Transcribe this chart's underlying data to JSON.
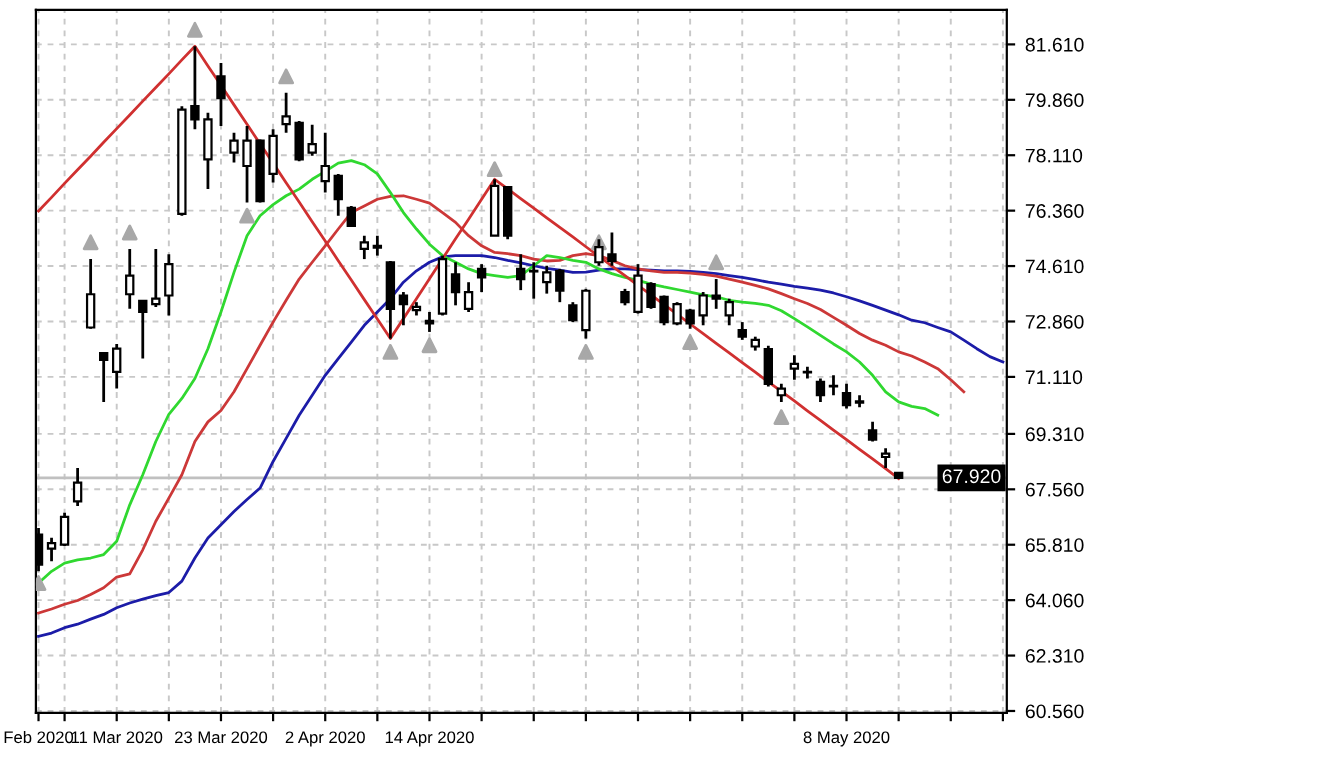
{
  "chart_data": {
    "type": "candlestick",
    "categories": [
      "Feb 2020",
      null,
      null,
      null,
      null,
      null,
      "11 Mar 2020",
      null,
      null,
      null,
      null,
      null,
      null,
      null,
      "23 Mar 2020",
      null,
      null,
      null,
      null,
      null,
      null,
      null,
      "2 Apr 2020",
      null,
      null,
      null,
      null,
      null,
      null,
      null,
      "14 Apr 2020",
      null,
      null,
      null,
      null,
      null,
      null,
      null,
      null,
      null,
      null,
      null,
      null,
      null,
      null,
      null,
      null,
      null,
      null,
      null,
      null,
      null,
      null,
      null,
      null,
      null,
      null,
      null,
      null,
      null,
      null,
      null,
      "8 May 2020",
      null,
      null,
      null,
      null,
      null,
      null,
      null,
      null,
      null,
      null,
      null,
      null
    ],
    "ohlc": [
      [
        66.13,
        66.34,
        64.97,
        65.18
      ],
      [
        65.69,
        66.03,
        65.29,
        65.86
      ],
      [
        65.81,
        66.82,
        65.77,
        66.69
      ],
      [
        67.18,
        68.23,
        67.03,
        67.77
      ],
      [
        72.67,
        74.83,
        72.63,
        73.72
      ],
      [
        71.86,
        71.86,
        70.32,
        71.65
      ],
      [
        71.27,
        72.15,
        70.74,
        72.0
      ],
      [
        73.72,
        75.15,
        73.26,
        74.31
      ],
      [
        73.51,
        73.51,
        71.69,
        73.16
      ],
      [
        73.41,
        75.15,
        73.32,
        73.58
      ],
      [
        73.68,
        74.98,
        73.05,
        74.67
      ],
      [
        76.26,
        79.66,
        76.2,
        79.55
      ],
      [
        79.66,
        81.55,
        78.93,
        79.24
      ],
      [
        77.98,
        79.45,
        77.04,
        79.24
      ],
      [
        80.6,
        81.02,
        79.03,
        79.91
      ],
      [
        78.19,
        78.82,
        77.88,
        78.57
      ],
      [
        77.77,
        79.03,
        76.62,
        78.57
      ],
      [
        78.57,
        78.61,
        76.62,
        76.66
      ],
      [
        77.52,
        78.93,
        77.25,
        78.72
      ],
      [
        79.09,
        80.08,
        78.82,
        79.34
      ],
      [
        79.13,
        79.19,
        77.92,
        77.98
      ],
      [
        78.19,
        79.07,
        78.09,
        78.46
      ],
      [
        77.29,
        78.82,
        76.93,
        77.77
      ],
      [
        77.46,
        77.52,
        76.2,
        76.72
      ],
      [
        76.45,
        76.51,
        75.84,
        75.88
      ],
      [
        75.15,
        75.57,
        74.83,
        75.36
      ],
      [
        75.25,
        75.57,
        74.94,
        75.19
      ],
      [
        74.73,
        74.77,
        72.32,
        73.26
      ],
      [
        73.68,
        73.79,
        72.74,
        73.41
      ],
      [
        73.22,
        73.47,
        73.05,
        73.32
      ],
      [
        72.88,
        73.16,
        72.53,
        72.8
      ],
      [
        73.11,
        74.94,
        73.05,
        74.83
      ],
      [
        74.35,
        74.73,
        73.37,
        73.79
      ],
      [
        73.26,
        74.1,
        73.16,
        73.79
      ],
      [
        74.52,
        74.67,
        73.79,
        74.25
      ],
      [
        75.57,
        77.35,
        75.57,
        77.14
      ],
      [
        77.1,
        77.14,
        75.46,
        75.57
      ],
      [
        74.52,
        74.98,
        73.85,
        74.2
      ],
      [
        74.46,
        74.73,
        73.58,
        74.44
      ],
      [
        74.1,
        74.62,
        73.74,
        74.41
      ],
      [
        74.46,
        74.52,
        73.47,
        73.83
      ],
      [
        73.37,
        73.47,
        72.84,
        72.9
      ],
      [
        72.59,
        73.89,
        72.32,
        73.83
      ],
      [
        74.73,
        75.46,
        74.62,
        75.21
      ],
      [
        74.98,
        75.67,
        74.62,
        74.77
      ],
      [
        73.79,
        73.89,
        73.37,
        73.47
      ],
      [
        73.16,
        74.67,
        73.11,
        74.31
      ],
      [
        74.04,
        74.1,
        73.26,
        73.32
      ],
      [
        73.64,
        73.68,
        72.74,
        72.84
      ],
      [
        72.8,
        73.47,
        72.74,
        73.41
      ],
      [
        73.2,
        73.26,
        72.63,
        72.8
      ],
      [
        73.05,
        73.79,
        72.74,
        73.68
      ],
      [
        73.68,
        74.2,
        73.26,
        73.58
      ],
      [
        73.05,
        73.58,
        72.74,
        73.47
      ],
      [
        72.59,
        72.84,
        72.28,
        72.38
      ],
      [
        72.07,
        72.38,
        71.94,
        72.28
      ],
      [
        71.99,
        72.09,
        70.81,
        70.89
      ],
      [
        70.53,
        70.89,
        70.32,
        70.74
      ],
      [
        71.37,
        71.79,
        71.02,
        71.52
      ],
      [
        71.27,
        71.43,
        71.06,
        71.25
      ],
      [
        70.95,
        71.06,
        70.32,
        70.53
      ],
      [
        70.83,
        71.16,
        70.53,
        70.81
      ],
      [
        70.6,
        70.89,
        70.11,
        70.22
      ],
      [
        70.34,
        70.53,
        70.15,
        70.3
      ],
      [
        69.42,
        69.69,
        69.07,
        69.13
      ],
      [
        68.58,
        68.86,
        68.23,
        68.69
      ],
      [
        68.08,
        68.08,
        67.9,
        67.92
      ],
      null,
      null,
      null,
      null,
      null,
      null,
      null,
      null
    ],
    "series": [
      {
        "type": "line",
        "color": "#1c1ca8",
        "values": [
          62.92,
          63.02,
          63.19,
          63.3,
          63.46,
          63.61,
          63.82,
          63.97,
          64.09,
          64.2,
          64.3,
          64.66,
          65.39,
          66.02,
          66.44,
          66.86,
          67.24,
          67.6,
          68.44,
          69.17,
          69.9,
          70.53,
          71.16,
          71.69,
          72.21,
          72.74,
          73.16,
          73.58,
          74.1,
          74.46,
          74.73,
          74.9,
          74.94,
          74.94,
          74.94,
          74.88,
          74.79,
          74.71,
          74.62,
          74.54,
          74.48,
          74.41,
          74.42,
          74.48,
          74.52,
          74.52,
          74.5,
          74.48,
          74.46,
          74.46,
          74.44,
          74.41,
          74.37,
          74.31,
          74.25,
          74.18,
          74.1,
          74.04,
          73.97,
          73.91,
          73.85,
          73.76,
          73.64,
          73.51,
          73.37,
          73.22,
          73.07,
          72.9,
          72.82,
          72.67,
          72.53,
          72.27,
          72.0,
          71.75,
          71.58
        ]
      },
      {
        "type": "line",
        "color": "#cc3838",
        "values": [
          63.65,
          63.78,
          63.93,
          64.05,
          64.24,
          64.45,
          64.79,
          64.89,
          65.65,
          66.55,
          67.28,
          68.02,
          69.07,
          69.69,
          70.05,
          70.64,
          71.37,
          72.11,
          72.84,
          73.53,
          74.2,
          74.73,
          75.25,
          75.78,
          76.3,
          76.51,
          76.72,
          76.81,
          76.83,
          76.72,
          76.6,
          76.3,
          75.99,
          75.57,
          75.25,
          75.04,
          75.0,
          74.94,
          74.83,
          74.77,
          74.79,
          74.94,
          75.0,
          74.94,
          74.79,
          74.62,
          74.52,
          74.46,
          74.41,
          74.41,
          74.39,
          74.35,
          74.29,
          74.2,
          74.1,
          74.0,
          73.89,
          73.74,
          73.58,
          73.43,
          73.24,
          72.99,
          72.74,
          72.48,
          72.27,
          72.11,
          71.9,
          71.77,
          71.58,
          71.37,
          71.02,
          70.64,
          null,
          null,
          null
        ]
      },
      {
        "type": "line",
        "color": "#30d830",
        "values": [
          64.6,
          64.97,
          65.23,
          65.33,
          65.39,
          65.5,
          65.92,
          67.07,
          68.02,
          69.07,
          69.93,
          70.43,
          71.06,
          72.0,
          73.16,
          74.41,
          75.57,
          76.2,
          76.55,
          76.83,
          77.04,
          77.35,
          77.6,
          77.86,
          77.94,
          77.81,
          77.52,
          76.93,
          76.3,
          75.78,
          75.3,
          74.94,
          74.73,
          74.52,
          74.37,
          74.31,
          74.25,
          74.31,
          74.62,
          74.94,
          74.88,
          74.79,
          74.73,
          74.52,
          74.37,
          74.25,
          74.16,
          74.04,
          73.95,
          73.87,
          73.79,
          73.7,
          73.64,
          73.53,
          73.47,
          73.43,
          73.37,
          73.2,
          72.95,
          72.69,
          72.42,
          72.15,
          71.9,
          71.58,
          71.16,
          70.64,
          70.32,
          70.18,
          70.11,
          69.9,
          null,
          null,
          null,
          null,
          null
        ]
      },
      {
        "type": "line",
        "color": "#d03030",
        "values": [
          76.35,
          76.78,
          77.22,
          77.65,
          78.08,
          78.52,
          78.95,
          79.38,
          79.82,
          80.25,
          80.68,
          81.12,
          81.55,
          80.93,
          80.32,
          79.7,
          79.09,
          78.47,
          77.86,
          77.24,
          76.63,
          76.01,
          75.4,
          74.78,
          74.17,
          73.55,
          72.94,
          72.32,
          72.95,
          73.58,
          74.21,
          74.84,
          75.47,
          76.09,
          76.72,
          77.35,
          77.05,
          76.74,
          76.44,
          76.13,
          75.83,
          75.53,
          75.22,
          74.92,
          74.61,
          74.31,
          74.0,
          73.7,
          73.39,
          73.09,
          72.78,
          72.48,
          72.17,
          71.87,
          71.56,
          71.26,
          70.95,
          70.65,
          70.35,
          70.04,
          69.74,
          69.43,
          69.13,
          68.82,
          68.52,
          68.21,
          67.9,
          null,
          null,
          null,
          null,
          null,
          null,
          null,
          null
        ]
      },
      {
        "type": "scatter",
        "color": "#a8a8a8",
        "marker": "triangle",
        "values": [
          null,
          null,
          null,
          null,
          75.36,
          null,
          null,
          75.67,
          null,
          null,
          null,
          null,
          82.07,
          null,
          null,
          null,
          null,
          null,
          null,
          80.6,
          null,
          null,
          null,
          null,
          null,
          null,
          null,
          null,
          null,
          null,
          null,
          null,
          null,
          null,
          null,
          77.67,
          null,
          null,
          null,
          null,
          null,
          null,
          null,
          75.36,
          null,
          null,
          null,
          null,
          null,
          null,
          null,
          null,
          74.73,
          null,
          null,
          null,
          null,
          null,
          null,
          null,
          null,
          null,
          null,
          null,
          null,
          null,
          null,
          null,
          null,
          null,
          null,
          null,
          null,
          null,
          null
        ]
      },
      {
        "type": "scatter",
        "color": "#a8a8a8",
        "marker": "triangle",
        "values": [
          64.6,
          null,
          null,
          null,
          null,
          null,
          null,
          null,
          null,
          null,
          null,
          null,
          null,
          null,
          null,
          null,
          76.2,
          null,
          null,
          null,
          null,
          null,
          null,
          null,
          null,
          null,
          null,
          71.9,
          null,
          null,
          72.11,
          null,
          null,
          null,
          null,
          null,
          null,
          null,
          null,
          null,
          null,
          null,
          71.9,
          null,
          null,
          null,
          null,
          null,
          null,
          null,
          72.21,
          null,
          null,
          null,
          null,
          null,
          null,
          69.84,
          null,
          null,
          null,
          null,
          null,
          null,
          null,
          null,
          null,
          null,
          null,
          null,
          null,
          null,
          null,
          null,
          null
        ]
      }
    ],
    "ylim": [
      60.5,
      82.7
    ],
    "yticks": [
      {
        "value": 60.56,
        "label": "60.560"
      },
      {
        "value": 62.31,
        "label": "62.310"
      },
      {
        "value": 64.06,
        "label": "64.060"
      },
      {
        "value": 65.81,
        "label": "65.810"
      },
      {
        "value": 67.56,
        "label": "67.560"
      },
      {
        "value": 69.31,
        "label": "69.310"
      },
      {
        "value": 71.11,
        "label": "71.110"
      },
      {
        "value": 72.86,
        "label": "72.860"
      },
      {
        "value": 74.61,
        "label": "74.610"
      },
      {
        "value": 76.36,
        "label": "76.360"
      },
      {
        "value": 78.11,
        "label": "78.110"
      },
      {
        "value": 79.86,
        "label": "79.860"
      },
      {
        "value": 81.61,
        "label": "81.610"
      }
    ],
    "ref_lines": [
      {
        "axis": "y",
        "value": 67.92,
        "label": "67.920",
        "color": "#c0c0c0"
      }
    ],
    "grid": true,
    "legend": false
  }
}
